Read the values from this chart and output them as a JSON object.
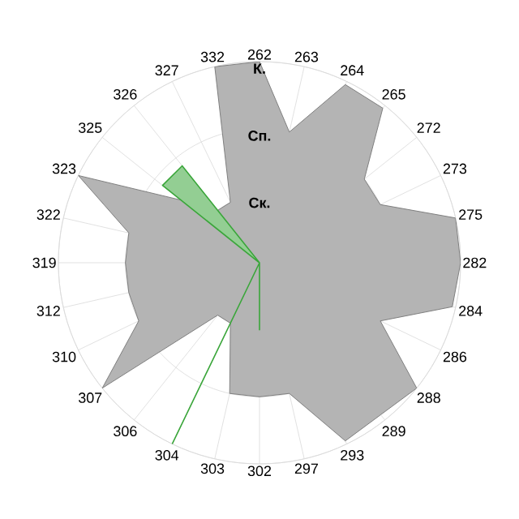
{
  "chart_data": {
    "type": "radar",
    "categories": [
      "262",
      "263",
      "264",
      "265",
      "272",
      "273",
      "275",
      "282",
      "284",
      "286",
      "288",
      "289",
      "293",
      "297",
      "302",
      "303",
      "304",
      "306",
      "307",
      "310",
      "312",
      "319",
      "322",
      "323",
      "325",
      "326",
      "327",
      "332"
    ],
    "ylim": [
      0,
      3
    ],
    "yticks": [
      {
        "value": 1,
        "label": "Ск."
      },
      {
        "value": 2,
        "label": "Сп."
      },
      {
        "value": 3,
        "label": "К."
      }
    ],
    "grid": true,
    "series": [
      {
        "color": "#b4b4b4",
        "values": [
          3.0,
          2.0,
          2.95,
          2.95,
          2.0,
          2.0,
          3.0,
          3.0,
          2.95,
          2.0,
          3.0,
          2.9,
          2.95,
          2.0,
          2.0,
          2.0,
          1.0,
          1.0,
          3.0,
          2.0,
          2.0,
          2.0,
          2.0,
          3.0,
          1.5,
          1.0,
          1.0,
          3.0
        ]
      },
      {
        "color": "#3aa63a",
        "values": [
          0,
          0,
          0,
          0,
          0,
          0,
          0,
          0,
          0,
          0,
          0,
          0,
          0,
          0,
          1.0,
          0,
          3.0,
          0,
          0,
          0,
          0,
          0,
          0,
          0,
          1.85,
          1.85,
          0,
          0
        ]
      }
    ]
  }
}
